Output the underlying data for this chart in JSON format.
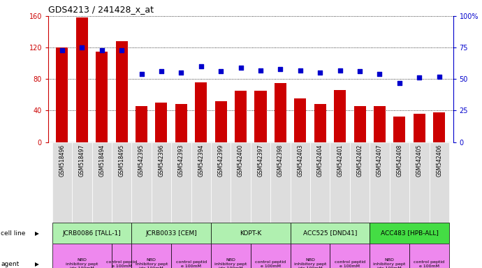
{
  "title": "GDS4213 / 241428_x_at",
  "samples": [
    "GSM518496",
    "GSM518497",
    "GSM518494",
    "GSM518495",
    "GSM542395",
    "GSM542396",
    "GSM542393",
    "GSM542394",
    "GSM542399",
    "GSM542400",
    "GSM542397",
    "GSM542398",
    "GSM542403",
    "GSM542404",
    "GSM542401",
    "GSM542402",
    "GSM542407",
    "GSM542408",
    "GSM542405",
    "GSM542406"
  ],
  "counts": [
    120,
    158,
    115,
    128,
    46,
    50,
    48,
    76,
    52,
    65,
    65,
    75,
    55,
    48,
    66,
    46,
    46,
    32,
    36,
    38
  ],
  "percentiles": [
    73,
    75,
    73,
    73,
    54,
    56,
    55,
    60,
    56,
    59,
    57,
    58,
    57,
    55,
    57,
    56,
    54,
    47,
    51,
    52
  ],
  "bar_color": "#cc0000",
  "dot_color": "#0000cc",
  "left_ylim": [
    0,
    160
  ],
  "right_ylim": [
    0,
    100
  ],
  "left_yticks": [
    0,
    40,
    80,
    120,
    160
  ],
  "right_yticks": [
    0,
    25,
    50,
    75,
    100
  ],
  "cell_lines": [
    {
      "label": "JCRB0086 [TALL-1]",
      "start": 0,
      "end": 4,
      "color": "#b0f0b0"
    },
    {
      "label": "JCRB0033 [CEM]",
      "start": 4,
      "end": 8,
      "color": "#b0f0b0"
    },
    {
      "label": "KOPT-K",
      "start": 8,
      "end": 12,
      "color": "#b0f0b0"
    },
    {
      "label": "ACC525 [DND41]",
      "start": 12,
      "end": 16,
      "color": "#b0f0b0"
    },
    {
      "label": "ACC483 [HPB-ALL]",
      "start": 16,
      "end": 20,
      "color": "#44dd44"
    }
  ],
  "agents": [
    {
      "label": "NBD\ninhibitory pept\nide 100mM",
      "start": 0,
      "end": 3,
      "color": "#ee88ee"
    },
    {
      "label": "control peptid\ne 100mM",
      "start": 3,
      "end": 4,
      "color": "#ee88ee"
    },
    {
      "label": "NBD\ninhibitory pept\nide 100mM",
      "start": 4,
      "end": 6,
      "color": "#ee88ee"
    },
    {
      "label": "control peptid\ne 100mM",
      "start": 6,
      "end": 8,
      "color": "#ee88ee"
    },
    {
      "label": "NBD\ninhibitory pept\nide 100mM",
      "start": 8,
      "end": 10,
      "color": "#ee88ee"
    },
    {
      "label": "control peptid\ne 100mM",
      "start": 10,
      "end": 12,
      "color": "#ee88ee"
    },
    {
      "label": "NBD\ninhibitory pept\nide 100mM",
      "start": 12,
      "end": 14,
      "color": "#ee88ee"
    },
    {
      "label": "control peptid\ne 100mM",
      "start": 14,
      "end": 16,
      "color": "#ee88ee"
    },
    {
      "label": "NBD\ninhibitory pept\nide 100mM",
      "start": 16,
      "end": 18,
      "color": "#ee88ee"
    },
    {
      "label": "control peptid\ne 100mM",
      "start": 18,
      "end": 20,
      "color": "#ee88ee"
    }
  ],
  "sample_bg_color": "#dddddd",
  "legend_count_color": "#cc0000",
  "legend_pct_color": "#0000cc",
  "bg_color": "#ffffff",
  "tick_color_left": "#cc0000",
  "tick_color_right": "#0000cc",
  "n_samples": 20
}
